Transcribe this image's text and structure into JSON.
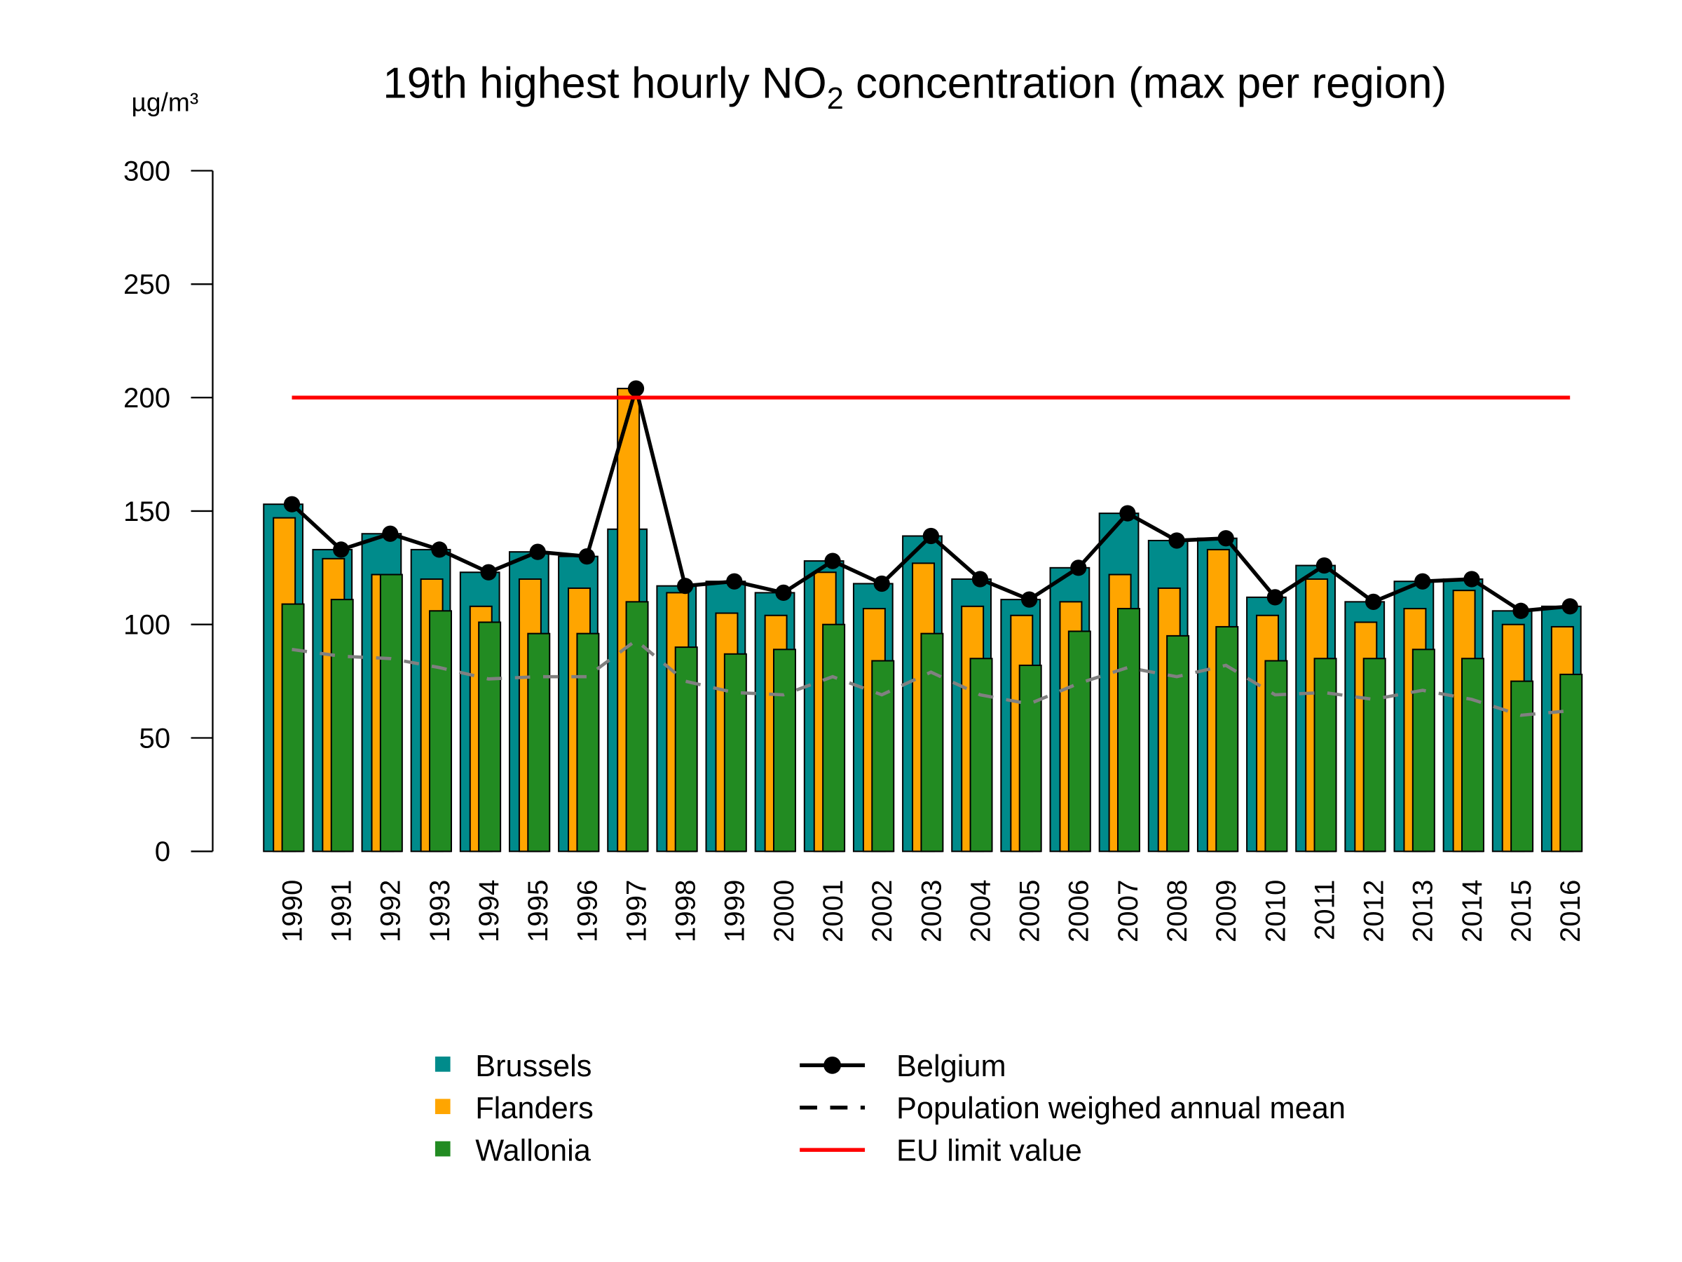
{
  "chart_data": {
    "type": "bar",
    "title_main": "19th highest hourly NO",
    "title_sub": "2",
    "title_rest": " concentration (max per region)",
    "ylabel": "µg/m³",
    "ylim": [
      0,
      300
    ],
    "yticks": [
      "0",
      "50",
      "100",
      "150",
      "200",
      "250",
      "300"
    ],
    "categories": [
      "1990",
      "1991",
      "1992",
      "1993",
      "1994",
      "1995",
      "1996",
      "1997",
      "1998",
      "1999",
      "2000",
      "2001",
      "2002",
      "2003",
      "2004",
      "2005",
      "2006",
      "2007",
      "2008",
      "2009",
      "2010",
      "2011",
      "2012",
      "2013",
      "2014",
      "2015",
      "2016"
    ],
    "series": [
      {
        "name": "Brussels",
        "type": "bar",
        "color": "#008B8B",
        "values": [
          153,
          133,
          140,
          133,
          123,
          132,
          130,
          142,
          117,
          119,
          114,
          128,
          118,
          139,
          120,
          111,
          125,
          149,
          137,
          138,
          112,
          126,
          110,
          119,
          120,
          106,
          108
        ]
      },
      {
        "name": "Flanders",
        "type": "bar",
        "color": "#FFA500",
        "values": [
          147,
          129,
          122,
          120,
          108,
          120,
          116,
          204,
          114,
          105,
          104,
          123,
          107,
          127,
          108,
          104,
          110,
          122,
          116,
          133,
          104,
          120,
          101,
          107,
          115,
          100,
          99
        ]
      },
      {
        "name": "Wallonia",
        "type": "bar",
        "color": "#228B22",
        "values": [
          109,
          111,
          122,
          106,
          101,
          96,
          96,
          110,
          90,
          87,
          89,
          100,
          84,
          96,
          85,
          82,
          97,
          107,
          95,
          99,
          84,
          85,
          85,
          89,
          85,
          75,
          78
        ]
      },
      {
        "name": "Belgium",
        "type": "line-points",
        "color": "#000000",
        "values": [
          153,
          133,
          140,
          133,
          123,
          132,
          130,
          204,
          117,
          119,
          114,
          128,
          118,
          139,
          120,
          111,
          125,
          149,
          137,
          138,
          112,
          126,
          110,
          119,
          120,
          106,
          108
        ]
      },
      {
        "name": "Population weighed annual mean",
        "type": "dashed-line",
        "color": "#808080",
        "values": [
          89,
          86,
          85,
          81,
          76,
          77,
          77,
          93,
          75,
          70,
          69,
          77,
          69,
          79,
          69,
          65,
          74,
          81,
          77,
          82,
          69,
          70,
          67,
          71,
          67,
          60,
          62
        ]
      },
      {
        "name": "EU limit value",
        "type": "hline",
        "color": "#FF0000",
        "value": 200
      }
    ],
    "legend_placement": "bottom",
    "grid": false
  }
}
